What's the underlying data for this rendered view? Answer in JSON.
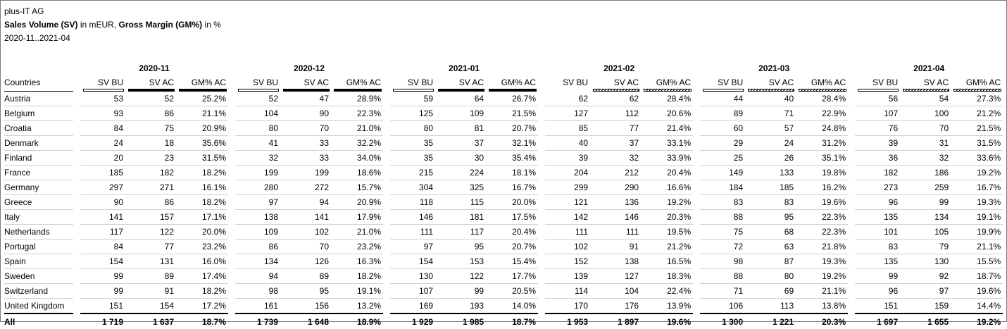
{
  "header": {
    "company": "plus-IT AG",
    "title_part1": "Sales Volume (SV)",
    "title_part2": " in mEUR, ",
    "title_part3": "Gross Margin (GM%)",
    "title_part4": " in %",
    "period": "2020-11..2021-04"
  },
  "table": {
    "row_header": "Countries",
    "months": [
      {
        "label": "2020-11",
        "cols": [
          "SV BU",
          "SV AC",
          "GM% AC"
        ],
        "bars": [
          "bu",
          "ac",
          "gm"
        ]
      },
      {
        "label": "2020-12",
        "cols": [
          "SV BU",
          "SV AC",
          "GM% AC"
        ],
        "bars": [
          "bu",
          "ac",
          "gm"
        ]
      },
      {
        "label": "2021-01",
        "cols": [
          "SV BU",
          "SV AC",
          "GM% AC"
        ],
        "bars": [
          "bu",
          "ac",
          "gm"
        ]
      },
      {
        "label": "2021-02",
        "cols": [
          "SV BU",
          "SV AC",
          "GM% AC"
        ],
        "bars": [
          "none",
          "fc",
          "fc"
        ]
      },
      {
        "label": "2021-03",
        "cols": [
          "SV BU",
          "SV AC",
          "GM% AC"
        ],
        "bars": [
          "bu",
          "fc",
          "fc"
        ]
      },
      {
        "label": "2021-04",
        "cols": [
          "SV BU",
          "SV AC",
          "GM% AC"
        ],
        "bars": [
          "bu",
          "fc",
          "fc"
        ]
      }
    ],
    "rows": [
      {
        "country": "Austria",
        "values": [
          "53",
          "52",
          "25.2%",
          "52",
          "47",
          "28.9%",
          "59",
          "64",
          "26.7%",
          "62",
          "62",
          "28.4%",
          "44",
          "40",
          "28.4%",
          "56",
          "54",
          "27.3%"
        ]
      },
      {
        "country": "Belgium",
        "values": [
          "93",
          "86",
          "21.1%",
          "104",
          "90",
          "22.3%",
          "125",
          "109",
          "21.5%",
          "127",
          "112",
          "20.6%",
          "89",
          "71",
          "22.9%",
          "107",
          "100",
          "21.2%"
        ]
      },
      {
        "country": "Croatia",
        "values": [
          "84",
          "75",
          "20.9%",
          "80",
          "70",
          "21.0%",
          "80",
          "81",
          "20.7%",
          "85",
          "77",
          "21.4%",
          "60",
          "57",
          "24.8%",
          "76",
          "70",
          "21.5%"
        ]
      },
      {
        "country": "Denmark",
        "values": [
          "24",
          "18",
          "35.6%",
          "41",
          "33",
          "32.2%",
          "35",
          "37",
          "32.1%",
          "40",
          "37",
          "33.1%",
          "29",
          "24",
          "31.2%",
          "39",
          "31",
          "31.5%"
        ]
      },
      {
        "country": "Finland",
        "values": [
          "20",
          "23",
          "31.5%",
          "32",
          "33",
          "34.0%",
          "35",
          "30",
          "35.4%",
          "39",
          "32",
          "33.9%",
          "25",
          "26",
          "35.1%",
          "36",
          "32",
          "33.6%"
        ]
      },
      {
        "country": "France",
        "values": [
          "185",
          "182",
          "18.2%",
          "199",
          "199",
          "18.6%",
          "215",
          "224",
          "18.1%",
          "204",
          "212",
          "20.4%",
          "149",
          "133",
          "19.8%",
          "182",
          "186",
          "19.2%"
        ]
      },
      {
        "country": "Germany",
        "values": [
          "297",
          "271",
          "16.1%",
          "280",
          "272",
          "15.7%",
          "304",
          "325",
          "16.7%",
          "299",
          "290",
          "16.6%",
          "184",
          "185",
          "16.2%",
          "273",
          "259",
          "16.7%"
        ]
      },
      {
        "country": "Greece",
        "values": [
          "90",
          "86",
          "18.2%",
          "97",
          "94",
          "20.9%",
          "118",
          "115",
          "20.0%",
          "121",
          "136",
          "19.2%",
          "83",
          "83",
          "19.6%",
          "96",
          "99",
          "19.3%"
        ]
      },
      {
        "country": "Italy",
        "values": [
          "141",
          "157",
          "17.1%",
          "138",
          "141",
          "17.9%",
          "146",
          "181",
          "17.5%",
          "142",
          "146",
          "20.3%",
          "88",
          "95",
          "22.3%",
          "135",
          "134",
          "19.1%"
        ]
      },
      {
        "country": "Netherlands",
        "values": [
          "117",
          "122",
          "20.0%",
          "109",
          "102",
          "21.0%",
          "111",
          "117",
          "20.4%",
          "111",
          "111",
          "19.5%",
          "75",
          "68",
          "22.3%",
          "101",
          "105",
          "19.9%"
        ]
      },
      {
        "country": "Portugal",
        "values": [
          "84",
          "77",
          "23.2%",
          "86",
          "70",
          "23.2%",
          "97",
          "95",
          "20.7%",
          "102",
          "91",
          "21.2%",
          "72",
          "63",
          "21.8%",
          "83",
          "79",
          "21.1%"
        ]
      },
      {
        "country": "Spain",
        "values": [
          "154",
          "131",
          "16.0%",
          "134",
          "126",
          "16.3%",
          "154",
          "153",
          "15.4%",
          "152",
          "138",
          "16.5%",
          "98",
          "87",
          "19.3%",
          "135",
          "130",
          "15.5%"
        ]
      },
      {
        "country": "Sweden",
        "values": [
          "99",
          "89",
          "17.4%",
          "94",
          "89",
          "18.2%",
          "130",
          "122",
          "17.7%",
          "139",
          "127",
          "18.3%",
          "88",
          "80",
          "19.2%",
          "99",
          "92",
          "18.7%"
        ]
      },
      {
        "country": "Switzerland",
        "values": [
          "99",
          "91",
          "18.2%",
          "98",
          "95",
          "19.1%",
          "107",
          "99",
          "20.5%",
          "114",
          "104",
          "22.4%",
          "71",
          "69",
          "21.1%",
          "96",
          "97",
          "19.6%"
        ]
      },
      {
        "country": "United Kingdom",
        "values": [
          "151",
          "154",
          "17.2%",
          "161",
          "156",
          "13.2%",
          "169",
          "193",
          "14.0%",
          "170",
          "176",
          "13.9%",
          "106",
          "113",
          "13.8%",
          "151",
          "159",
          "14.4%"
        ]
      }
    ],
    "total": {
      "country": "All",
      "values": [
        "1 719",
        "1 637",
        "18.7%",
        "1 739",
        "1 648",
        "18.9%",
        "1 929",
        "1 985",
        "18.7%",
        "1 953",
        "1 897",
        "19.6%",
        "1 300",
        "1 221",
        "20.3%",
        "1 697",
        "1 655",
        "19.2%"
      ]
    }
  }
}
